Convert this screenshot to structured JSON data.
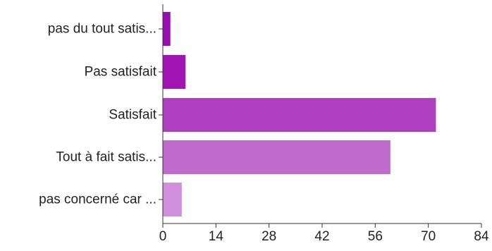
{
  "chart_data": {
    "type": "bar",
    "orientation": "horizontal",
    "title": "",
    "xlabel": "",
    "ylabel": "",
    "grid": false,
    "legend": "none",
    "categories": [
      "pas du tout satis...",
      "Pas satisfait",
      "Satisfait",
      "Tout à fait satis...",
      "pas concerné car ..."
    ],
    "values": [
      2,
      6,
      72,
      60,
      5
    ],
    "colors": [
      "#9a0cb4",
      "#a215b5",
      "#ae40c0",
      "#c06acd",
      "#d28fde"
    ],
    "xlim": [
      0,
      84
    ],
    "xticks": [
      "0",
      "14",
      "28",
      "42",
      "56",
      "70",
      "84"
    ],
    "xtick_values": [
      0,
      14,
      28,
      42,
      56,
      70,
      84
    ]
  }
}
